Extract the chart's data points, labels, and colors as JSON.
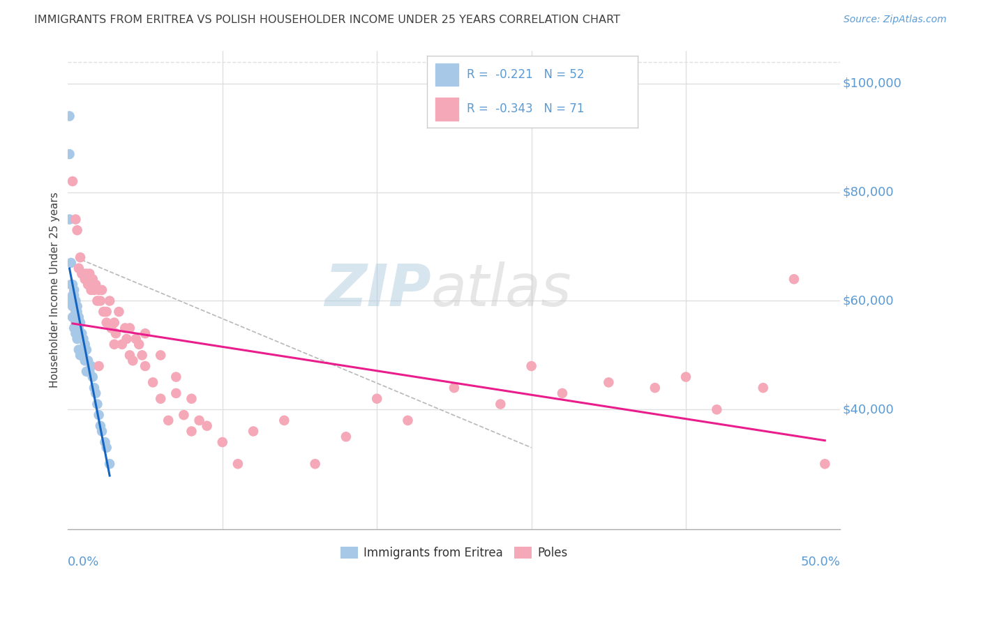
{
  "title": "IMMIGRANTS FROM ERITREA VS POLISH HOUSEHOLDER INCOME UNDER 25 YEARS CORRELATION CHART",
  "source": "Source: ZipAtlas.com",
  "ylabel": "Householder Income Under 25 years",
  "ytick_values": [
    40000,
    60000,
    80000,
    100000
  ],
  "ytick_labels": [
    "$40,000",
    "$60,000",
    "$80,000",
    "$100,000"
  ],
  "xmin": 0.0,
  "xmax": 0.5,
  "ymin": 18000,
  "ymax": 106000,
  "eritrea_color": "#a8c8e8",
  "poles_color": "#f4a8b8",
  "eritrea_line_color": "#1565c0",
  "poles_line_color": "#e91e8c",
  "dashed_line_color": "#b8b8b8",
  "legend_R_eritrea": "-0.221",
  "legend_N_eritrea": "52",
  "legend_R_poles": "-0.343",
  "legend_N_poles": "71",
  "axis_label_color": "#5b9bd5",
  "title_color": "#404040",
  "source_color": "#5b9bd5",
  "grid_color": "#e0e0e0",
  "background_color": "#ffffff",
  "eritrea_x": [
    0.001,
    0.001,
    0.001,
    0.002,
    0.002,
    0.002,
    0.003,
    0.003,
    0.003,
    0.003,
    0.003,
    0.004,
    0.004,
    0.004,
    0.004,
    0.004,
    0.005,
    0.005,
    0.005,
    0.005,
    0.005,
    0.006,
    0.006,
    0.006,
    0.006,
    0.007,
    0.007,
    0.007,
    0.008,
    0.008,
    0.008,
    0.009,
    0.009,
    0.01,
    0.01,
    0.011,
    0.011,
    0.012,
    0.012,
    0.013,
    0.014,
    0.015,
    0.016,
    0.017,
    0.018,
    0.019,
    0.02,
    0.021,
    0.022,
    0.024,
    0.025,
    0.027
  ],
  "eritrea_y": [
    94000,
    87000,
    75000,
    67000,
    63000,
    60000,
    63000,
    61000,
    60000,
    59000,
    57000,
    62000,
    61000,
    60000,
    59000,
    55000,
    60000,
    59000,
    58000,
    56000,
    54000,
    59000,
    58000,
    56000,
    53000,
    57000,
    55000,
    51000,
    56000,
    54000,
    50000,
    54000,
    51000,
    53000,
    50000,
    52000,
    49000,
    51000,
    47000,
    49000,
    47000,
    48000,
    46000,
    44000,
    43000,
    41000,
    39000,
    37000,
    36000,
    34000,
    33000,
    30000
  ],
  "poles_x": [
    0.003,
    0.005,
    0.006,
    0.007,
    0.008,
    0.009,
    0.01,
    0.011,
    0.012,
    0.013,
    0.014,
    0.015,
    0.016,
    0.017,
    0.018,
    0.019,
    0.02,
    0.021,
    0.022,
    0.023,
    0.024,
    0.025,
    0.027,
    0.028,
    0.03,
    0.031,
    0.033,
    0.035,
    0.037,
    0.038,
    0.04,
    0.042,
    0.044,
    0.046,
    0.048,
    0.05,
    0.055,
    0.06,
    0.065,
    0.07,
    0.075,
    0.08,
    0.085,
    0.09,
    0.1,
    0.11,
    0.12,
    0.14,
    0.16,
    0.18,
    0.2,
    0.22,
    0.25,
    0.28,
    0.3,
    0.32,
    0.35,
    0.38,
    0.4,
    0.42,
    0.45,
    0.47,
    0.49,
    0.02,
    0.025,
    0.03,
    0.04,
    0.05,
    0.06,
    0.07,
    0.08
  ],
  "poles_y": [
    82000,
    75000,
    73000,
    66000,
    68000,
    65000,
    65000,
    64000,
    65000,
    63000,
    65000,
    62000,
    64000,
    62000,
    63000,
    60000,
    62000,
    60000,
    62000,
    58000,
    58000,
    56000,
    60000,
    55000,
    56000,
    54000,
    58000,
    52000,
    55000,
    53000,
    50000,
    49000,
    53000,
    52000,
    50000,
    54000,
    45000,
    42000,
    38000,
    43000,
    39000,
    42000,
    38000,
    37000,
    34000,
    30000,
    36000,
    38000,
    30000,
    35000,
    42000,
    38000,
    44000,
    41000,
    48000,
    43000,
    45000,
    44000,
    46000,
    40000,
    44000,
    64000,
    30000,
    48000,
    58000,
    52000,
    55000,
    48000,
    50000,
    46000,
    36000
  ]
}
